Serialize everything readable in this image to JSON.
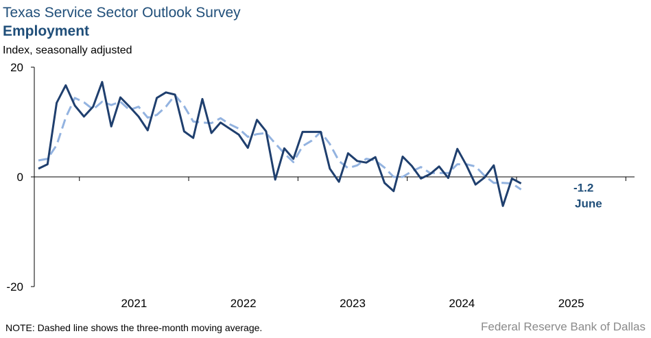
{
  "header": {
    "title": "Texas Service Sector Outlook Survey",
    "subtitle": "Employment",
    "unit": "Index, seasonally adjusted"
  },
  "footer": {
    "note": "NOTE: Dashed line shows the three-month  moving average.",
    "source": "Federal Reserve Bank of Dallas"
  },
  "chart_data": {
    "type": "line",
    "title": "Employment",
    "ylabel": "Index, seasonally adjusted",
    "ylim": [
      -20,
      20
    ],
    "yticks": [
      20,
      0,
      -20
    ],
    "xticks": [
      "2021",
      "2022",
      "2023",
      "2024",
      "2025"
    ],
    "x_start": "2020-08",
    "x_end": "2025-06",
    "series": [
      {
        "role": "index",
        "style": "solid",
        "color": "#1f3f6e",
        "values": [
          1.5,
          2.3,
          13.5,
          16.7,
          13.0,
          11.0,
          12.8,
          17.3,
          9.2,
          14.5,
          12.8,
          11.0,
          8.5,
          14.4,
          15.4,
          15.0,
          8.3,
          7.1,
          14.2,
          8.0,
          9.9,
          8.8,
          7.7,
          5.3,
          10.4,
          8.3,
          -0.5,
          5.2,
          3.3,
          8.2,
          8.2,
          8.2,
          1.5,
          -0.9,
          4.3,
          2.9,
          2.6,
          3.6,
          -1.1,
          -2.6,
          3.7,
          2.0,
          -0.3,
          0.5,
          1.9,
          -0.2,
          5.1,
          2.1,
          -1.4,
          -0.1,
          2.1,
          -5.3,
          -0.3,
          -1.2
        ]
      },
      {
        "role": "three-month moving average",
        "style": "dashed",
        "color": "#93b3e0",
        "values": [
          3.0,
          3.3,
          5.8,
          10.8,
          14.4,
          13.6,
          12.3,
          13.7,
          13.1,
          13.7,
          12.2,
          12.8,
          10.8,
          11.3,
          12.8,
          14.9,
          12.9,
          10.1,
          9.9,
          9.8,
          10.7,
          9.6,
          8.8,
          7.3,
          7.8,
          8.0,
          6.1,
          4.3,
          2.7,
          5.6,
          6.6,
          8.2,
          6.0,
          2.9,
          1.6,
          2.1,
          3.3,
          3.0,
          1.7,
          -0.0,
          0.0,
          1.0,
          1.8,
          0.7,
          0.7,
          0.7,
          2.3,
          2.3,
          1.9,
          0.2,
          -1.1,
          -1.1,
          -1.2,
          -2.3
        ]
      }
    ],
    "annotations": [
      {
        "value_label": "-1.2",
        "month_label": "June"
      }
    ]
  }
}
